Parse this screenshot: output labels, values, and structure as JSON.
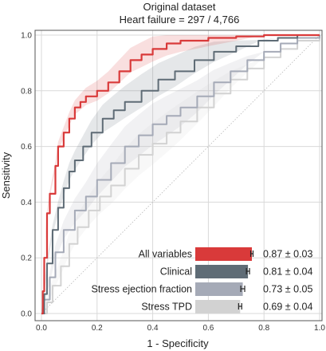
{
  "chart_data": {
    "type": "line",
    "title": "Original dataset",
    "subtitle": "Heart failure = 297 / 4,766",
    "xlabel": "1 - Specificity",
    "ylabel": "Sensitivity",
    "xlim": [
      0,
      1
    ],
    "ylim": [
      0,
      1
    ],
    "xticks": [
      "0.0",
      "0.2",
      "0.4",
      "0.6",
      "0.8",
      "1.0"
    ],
    "yticks": [
      "0.0",
      "0.2",
      "0.4",
      "0.6",
      "0.8",
      "1.0"
    ],
    "grid": true,
    "reference_line": "diagonal",
    "series": [
      {
        "name": "All variables",
        "color": "#d93a3a",
        "auc": 0.87,
        "auc_error": 0.03,
        "auc_label": "0.87 ± 0.03",
        "points": [
          [
            0,
            0
          ],
          [
            0.005,
            0.08
          ],
          [
            0.01,
            0.2
          ],
          [
            0.02,
            0.36
          ],
          [
            0.03,
            0.43
          ],
          [
            0.05,
            0.53
          ],
          [
            0.06,
            0.6
          ],
          [
            0.08,
            0.65
          ],
          [
            0.1,
            0.7
          ],
          [
            0.12,
            0.74
          ],
          [
            0.14,
            0.76
          ],
          [
            0.16,
            0.78
          ],
          [
            0.2,
            0.8
          ],
          [
            0.24,
            0.83
          ],
          [
            0.28,
            0.87
          ],
          [
            0.32,
            0.91
          ],
          [
            0.36,
            0.93
          ],
          [
            0.4,
            0.95
          ],
          [
            0.45,
            0.97
          ],
          [
            0.5,
            0.98
          ],
          [
            0.6,
            0.99
          ],
          [
            0.7,
            0.995
          ],
          [
            0.8,
            1.0
          ],
          [
            1.0,
            1.0
          ]
        ]
      },
      {
        "name": "Clinical",
        "color": "#5f6c76",
        "auc": 0.81,
        "auc_error": 0.04,
        "auc_label": "0.81 ± 0.04",
        "points": [
          [
            0,
            0
          ],
          [
            0.01,
            0.07
          ],
          [
            0.02,
            0.18
          ],
          [
            0.04,
            0.3
          ],
          [
            0.06,
            0.38
          ],
          [
            0.08,
            0.45
          ],
          [
            0.1,
            0.51
          ],
          [
            0.12,
            0.55
          ],
          [
            0.15,
            0.6
          ],
          [
            0.18,
            0.65
          ],
          [
            0.22,
            0.7
          ],
          [
            0.26,
            0.73
          ],
          [
            0.3,
            0.76
          ],
          [
            0.36,
            0.8
          ],
          [
            0.42,
            0.84
          ],
          [
            0.48,
            0.87
          ],
          [
            0.55,
            0.91
          ],
          [
            0.62,
            0.94
          ],
          [
            0.7,
            0.96
          ],
          [
            0.78,
            0.98
          ],
          [
            0.85,
            0.99
          ],
          [
            0.92,
            1.0
          ],
          [
            1.0,
            1.0
          ]
        ]
      },
      {
        "name": "Stress ejection fraction",
        "color": "#a5aab7",
        "auc": 0.73,
        "auc_error": 0.05,
        "auc_label": "0.73 ± 0.05",
        "points": [
          [
            0,
            0
          ],
          [
            0.01,
            0.05
          ],
          [
            0.03,
            0.13
          ],
          [
            0.05,
            0.22
          ],
          [
            0.08,
            0.3
          ],
          [
            0.12,
            0.37
          ],
          [
            0.16,
            0.42
          ],
          [
            0.2,
            0.48
          ],
          [
            0.25,
            0.54
          ],
          [
            0.3,
            0.6
          ],
          [
            0.35,
            0.64
          ],
          [
            0.4,
            0.68
          ],
          [
            0.45,
            0.71
          ],
          [
            0.5,
            0.74
          ],
          [
            0.56,
            0.78
          ],
          [
            0.62,
            0.83
          ],
          [
            0.68,
            0.87
          ],
          [
            0.74,
            0.91
          ],
          [
            0.8,
            0.94
          ],
          [
            0.86,
            0.97
          ],
          [
            0.92,
            0.99
          ],
          [
            1.0,
            1.0
          ]
        ]
      },
      {
        "name": "Stress TPD",
        "color": "#d2d2d2",
        "auc": 0.69,
        "auc_error": 0.04,
        "auc_label": "0.69 ± 0.04",
        "points": [
          [
            0,
            0
          ],
          [
            0.02,
            0.04
          ],
          [
            0.04,
            0.1
          ],
          [
            0.07,
            0.17
          ],
          [
            0.1,
            0.25
          ],
          [
            0.13,
            0.31
          ],
          [
            0.17,
            0.37
          ],
          [
            0.21,
            0.42
          ],
          [
            0.25,
            0.46
          ],
          [
            0.3,
            0.52
          ],
          [
            0.35,
            0.57
          ],
          [
            0.4,
            0.61
          ],
          [
            0.45,
            0.65
          ],
          [
            0.5,
            0.69
          ],
          [
            0.56,
            0.74
          ],
          [
            0.62,
            0.79
          ],
          [
            0.68,
            0.84
          ],
          [
            0.74,
            0.88
          ],
          [
            0.8,
            0.92
          ],
          [
            0.86,
            0.95
          ],
          [
            0.92,
            0.98
          ],
          [
            1.0,
            1.0
          ]
        ]
      }
    ]
  }
}
